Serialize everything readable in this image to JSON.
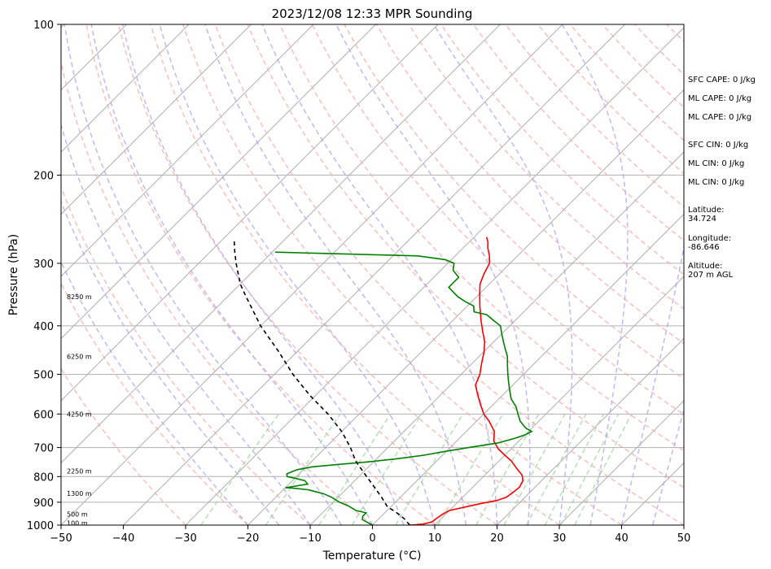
{
  "chart_data": {
    "type": "skew-t log-p sounding",
    "title": "2023/12/08 12:33 MPR Sounding",
    "xlabel": "Temperature (°C)",
    "ylabel": "Pressure (hPa)",
    "xlim": [
      -50,
      50
    ],
    "ylim": [
      1000,
      100
    ],
    "y_scale": "log",
    "x_ticks": [
      "−50",
      "−40",
      "−30",
      "−20",
      "−10",
      "0",
      "10",
      "20",
      "30",
      "40",
      "50"
    ],
    "y_ticks": [
      100,
      200,
      300,
      400,
      500,
      600,
      700,
      800,
      900,
      1000
    ],
    "grid": true,
    "height_labels": [
      {
        "pressure": 350,
        "text": "8250 m"
      },
      {
        "pressure": 460,
        "text": "6250 m"
      },
      {
        "pressure": 600,
        "text": "4250 m"
      },
      {
        "pressure": 780,
        "text": "2250 m"
      },
      {
        "pressure": 865,
        "text": "1300 m"
      },
      {
        "pressure": 950,
        "text": "500 m"
      },
      {
        "pressure": 990,
        "text": "100 m"
      }
    ],
    "series": [
      {
        "key": "temperature",
        "color": "#ff0000",
        "points": [
          [
            6,
            1000
          ],
          [
            8,
            995
          ],
          [
            9,
            985
          ],
          [
            9.2,
            970
          ],
          [
            9.5,
            950
          ],
          [
            10,
            935
          ],
          [
            12,
            920
          ],
          [
            14,
            905
          ],
          [
            16,
            893
          ],
          [
            17,
            880
          ],
          [
            17.3,
            860
          ],
          [
            17.5,
            840
          ],
          [
            17,
            815
          ],
          [
            16,
            795
          ],
          [
            14,
            770
          ],
          [
            12,
            745
          ],
          [
            10,
            725
          ],
          [
            8,
            705
          ],
          [
            6,
            680
          ],
          [
            5.5,
            670
          ],
          [
            4.5,
            650
          ],
          [
            2,
            620
          ],
          [
            0,
            600
          ],
          [
            -2,
            575
          ],
          [
            -4,
            550
          ],
          [
            -6,
            525
          ],
          [
            -7,
            500
          ],
          [
            -8.5,
            475
          ],
          [
            -10,
            450
          ],
          [
            -11.5,
            430
          ],
          [
            -13.5,
            410
          ],
          [
            -15.5,
            390
          ],
          [
            -18,
            365
          ],
          [
            -20,
            345
          ],
          [
            -21.5,
            330
          ],
          [
            -22.5,
            315
          ],
          [
            -23.3,
            300
          ],
          [
            -24.5,
            290
          ],
          [
            -26,
            280
          ],
          [
            -27,
            272
          ],
          [
            -28,
            266
          ]
        ]
      },
      {
        "key": "dewpoint",
        "color": "#008000",
        "points": [
          [
            0,
            1000
          ],
          [
            -1,
            990
          ],
          [
            -2.5,
            975
          ],
          [
            -3,
            960
          ],
          [
            -3,
            945
          ],
          [
            -5,
            935
          ],
          [
            -7,
            915
          ],
          [
            -9,
            900
          ],
          [
            -10,
            890
          ],
          [
            -11,
            880
          ],
          [
            -13,
            865
          ],
          [
            -16,
            850
          ],
          [
            -19,
            843
          ],
          [
            -20,
            842
          ],
          [
            -17,
            828
          ],
          [
            -18,
            815
          ],
          [
            -20,
            806
          ],
          [
            -21.5,
            800
          ],
          [
            -22,
            790
          ],
          [
            -21,
            775
          ],
          [
            -19,
            765
          ],
          [
            -15,
            756
          ],
          [
            -11,
            748
          ],
          [
            -7,
            738
          ],
          [
            -3,
            725
          ],
          [
            0,
            712
          ],
          [
            3,
            700
          ],
          [
            7,
            685
          ],
          [
            9,
            670
          ],
          [
            10,
            660
          ],
          [
            10.5,
            650
          ],
          [
            9,
            640
          ],
          [
            7,
            620
          ],
          [
            5.5,
            600
          ],
          [
            4,
            580
          ],
          [
            2,
            560
          ],
          [
            0.5,
            540
          ],
          [
            -1,
            520
          ],
          [
            -2.5,
            500
          ],
          [
            -4,
            480
          ],
          [
            -5.5,
            460
          ],
          [
            -7,
            445
          ],
          [
            -8.5,
            430
          ],
          [
            -10,
            415
          ],
          [
            -11.5,
            400
          ],
          [
            -13.5,
            390
          ],
          [
            -15.5,
            380
          ],
          [
            -18,
            375
          ],
          [
            -19,
            365
          ],
          [
            -21,
            358
          ],
          [
            -23,
            350
          ],
          [
            -25,
            340
          ],
          [
            -26,
            335
          ],
          [
            -26,
            320
          ],
          [
            -28,
            310
          ],
          [
            -29,
            300
          ],
          [
            -31,
            295
          ],
          [
            -36,
            290
          ],
          [
            -50,
            287
          ],
          [
            -59.5,
            285
          ]
        ]
      },
      {
        "key": "parcel",
        "color": "#000000",
        "style": "dashed",
        "points": [
          [
            6,
            1000
          ],
          [
            4,
            970
          ],
          [
            1.5,
            940
          ],
          [
            -0.5,
            920
          ],
          [
            -3,
            880
          ],
          [
            -6.5,
            830
          ],
          [
            -9.5,
            790
          ],
          [
            -13,
            745
          ],
          [
            -16,
            700
          ],
          [
            -20,
            650
          ],
          [
            -25,
            600
          ],
          [
            -31,
            550
          ],
          [
            -37,
            500
          ],
          [
            -43,
            450
          ],
          [
            -50,
            400
          ],
          [
            -57,
            350
          ],
          [
            -60,
            330
          ],
          [
            -64,
            300
          ],
          [
            -66,
            285
          ],
          [
            -68,
            270
          ]
        ]
      }
    ]
  },
  "sidebar": {
    "sfc_cape": "SFC CAPE: 0 J/kg",
    "ml_cape_1": "ML CAPE: 0 J/kg",
    "ml_cape_2": "ML CAPE: 0 J/kg",
    "sfc_cin": "SFC CIN: 0 J/kg",
    "ml_cin_1": "ML CIN: 0 J/kg",
    "ml_cin_2": "ML CIN: 0 J/kg",
    "latitude": "Latitude:\n34.724",
    "longitude": "Longitude:\n-86.646",
    "altitude": "Altitude:\n207 m AGL"
  }
}
